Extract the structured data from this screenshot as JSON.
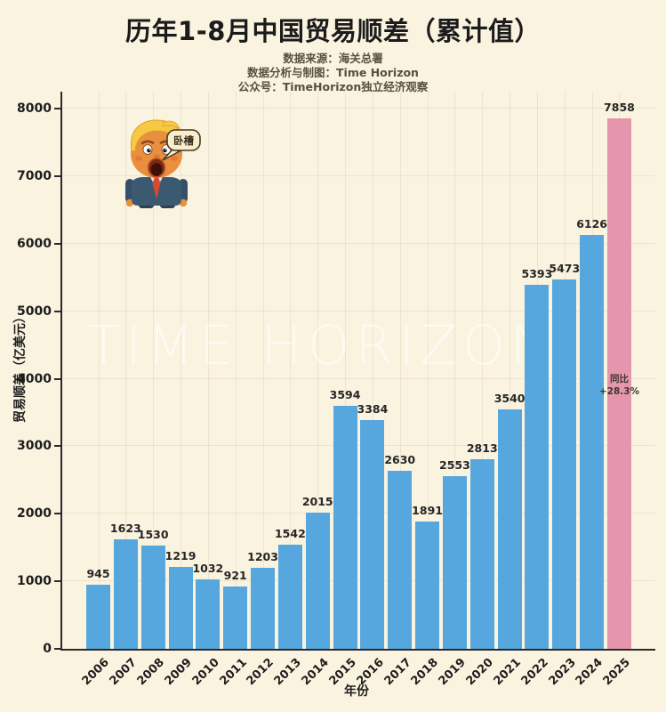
{
  "header": {
    "title": "历年1-8月中国贸易顺差（累计值）",
    "subtitles": [
      "数据来源：海关总署",
      "数据分析与制图：Time Horizon",
      "公众号：TimeHorizon独立经济观察"
    ]
  },
  "chart_data": {
    "type": "bar",
    "title": "历年1-8月中国贸易顺差（累计值）",
    "categories": [
      "2006",
      "2007",
      "2008",
      "2009",
      "2010",
      "2011",
      "2012",
      "2013",
      "2014",
      "2015",
      "2016",
      "2017",
      "2018",
      "2019",
      "2020",
      "2021",
      "2022",
      "2023",
      "2024",
      "2025"
    ],
    "values": [
      945,
      1623,
      1530,
      1219,
      1032,
      921,
      1203,
      1542,
      2015,
      3594,
      3384,
      2630,
      1891,
      2553,
      2813,
      3540,
      5393,
      5473,
      6126,
      7858
    ],
    "xlabel": "年份",
    "ylabel": "贸易顺差（亿美元）",
    "ylim": [
      0,
      8000
    ],
    "ytick_step": 1000,
    "grid": true,
    "legend_position": "none",
    "bar_color": "#56A7DE",
    "highlight_index": 19,
    "highlight_color": "#E596AD",
    "highlight_annotation": [
      "同比",
      "+28.3%"
    ]
  },
  "watermark": "TIME HORIZON",
  "sticker": {
    "description": "shocked-trump-figurine",
    "speech_bubble": "卧槽"
  },
  "colors": {
    "background": "#FAF3E0",
    "axis": "#2A2A2A",
    "bar": "#56A7DE",
    "highlight": "#E596AD",
    "subtitle_text": "#57503F",
    "grid": "rgba(120,100,60,0.10)"
  }
}
